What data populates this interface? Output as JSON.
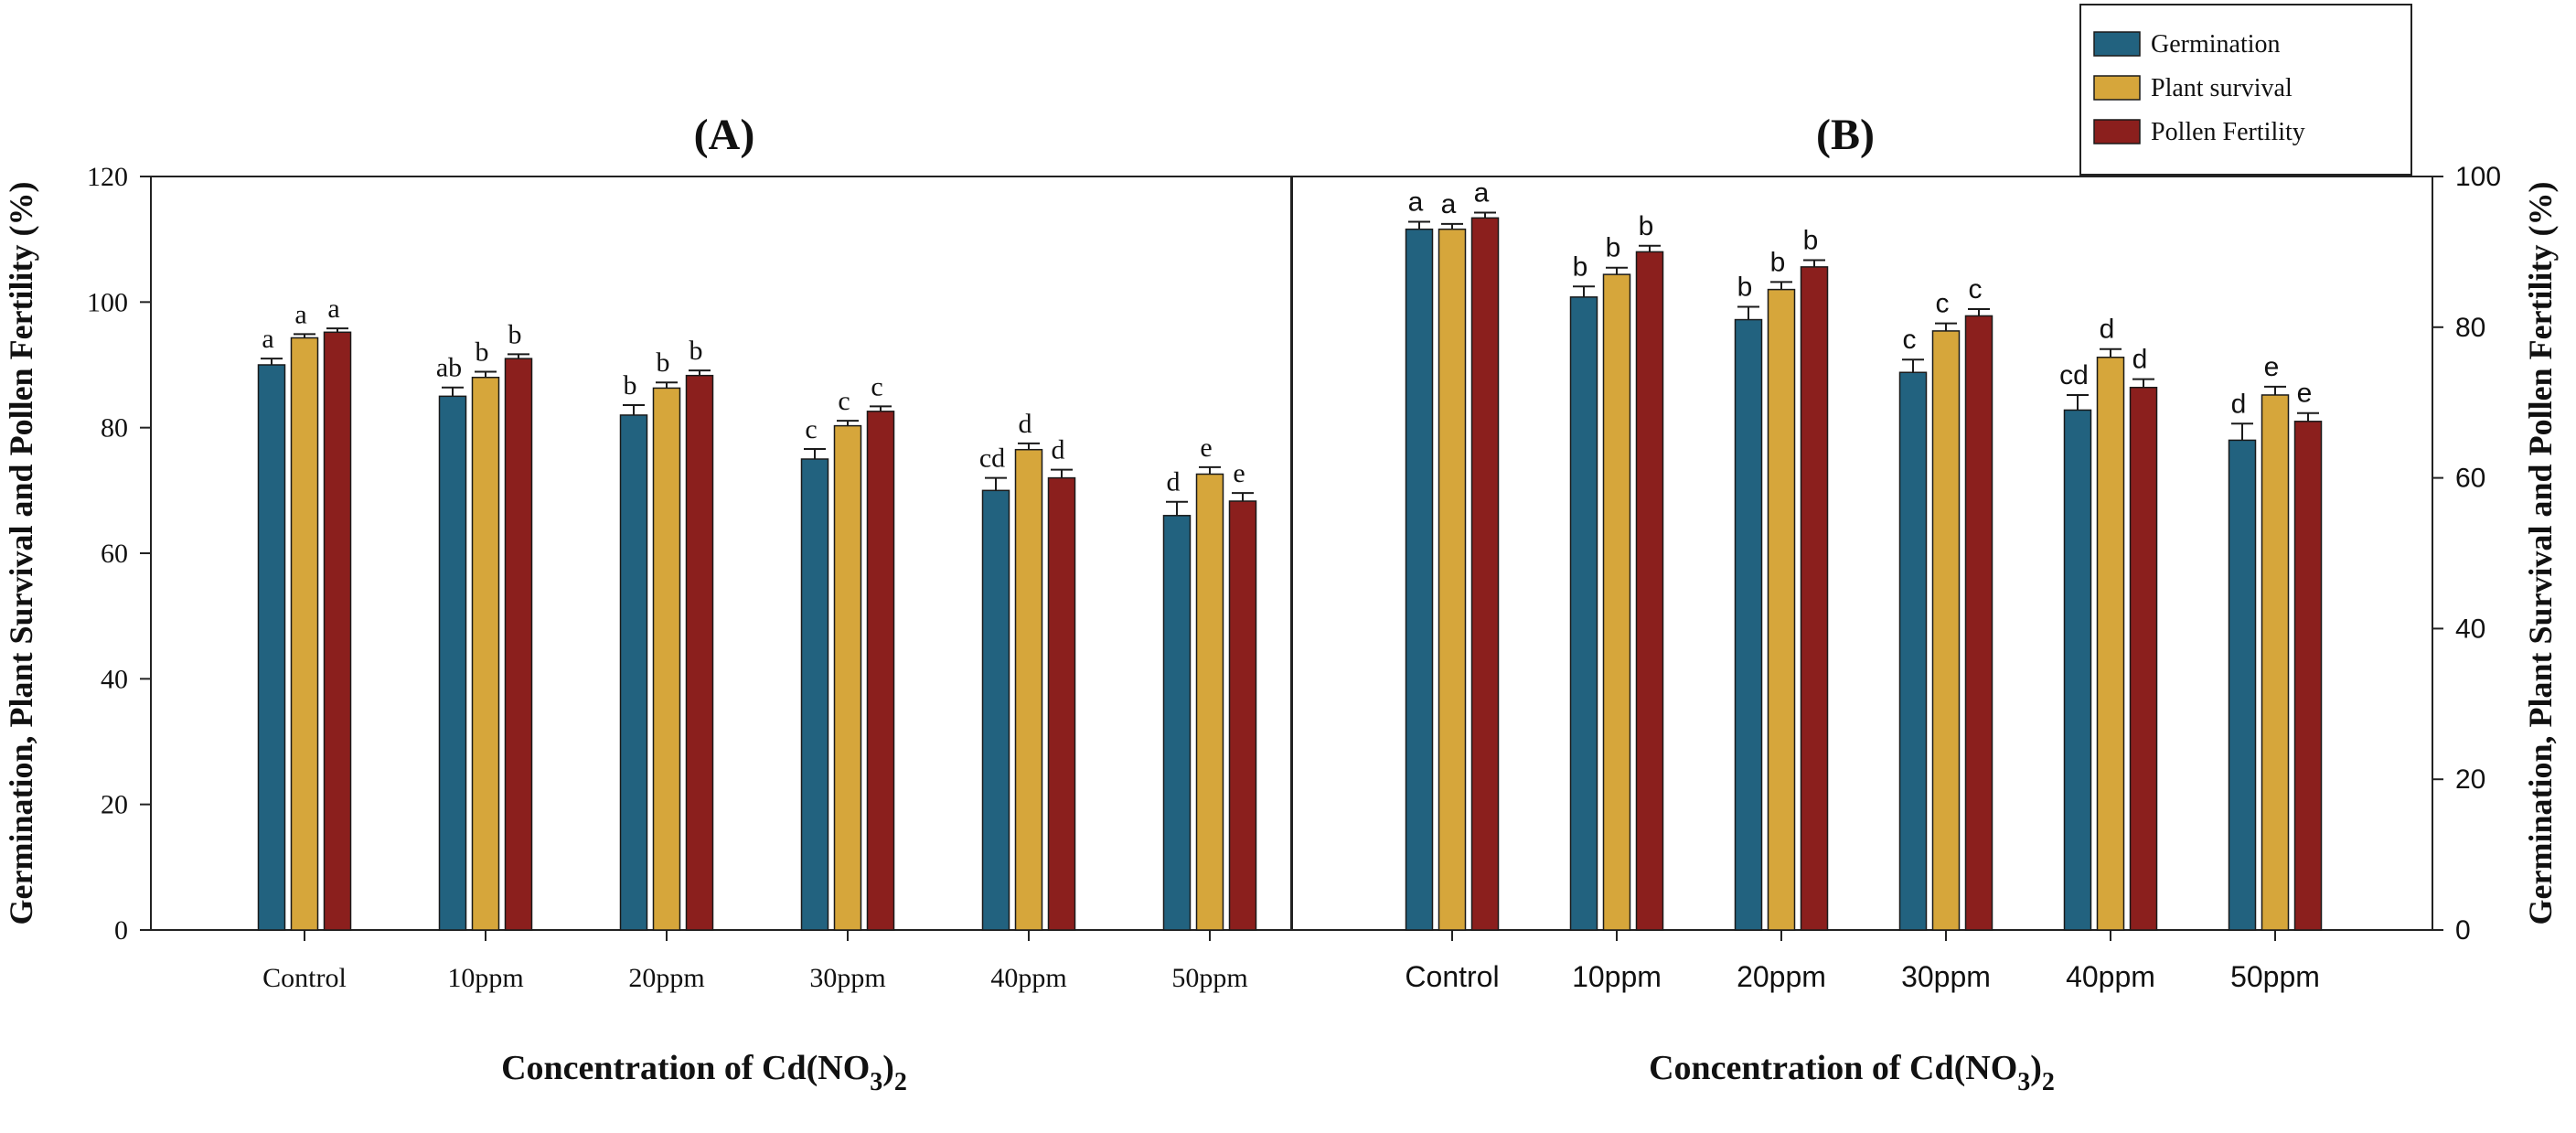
{
  "figure": {
    "legend": [
      {
        "name": "Germination",
        "color": "#22627f"
      },
      {
        "name": "Plant survival",
        "color": "#d6a63b"
      },
      {
        "name": "Pollen Fertility",
        "color": "#8b1f1d"
      }
    ],
    "xlabel_main": "Concentration of Cd(NO",
    "xlabel_sub": "3",
    "xlabel_tail": ")",
    "xlabel_sub2": "2"
  },
  "chart_data": [
    {
      "type": "bar",
      "panel_label": "(A)",
      "categories": [
        "Control",
        "10ppm",
        "20ppm",
        "30ppm",
        "40ppm",
        "50ppm"
      ],
      "series": [
        {
          "name": "Germination",
          "values": [
            90,
            85,
            82,
            75,
            70,
            66
          ],
          "errors": [
            1.0,
            1.4,
            1.6,
            1.6,
            2.0,
            2.2
          ],
          "labels": [
            "a",
            "ab",
            "b",
            "c",
            "cd",
            "d"
          ]
        },
        {
          "name": "Plant survival",
          "values": [
            94.3,
            88,
            86.3,
            80.3,
            76.5,
            72.6
          ],
          "errors": [
            0.6,
            0.9,
            0.9,
            0.8,
            1.0,
            1.1
          ],
          "labels": [
            "a",
            "b",
            "b",
            "c",
            "d",
            "e"
          ]
        },
        {
          "name": "Pollen Fertility",
          "values": [
            95.2,
            91,
            88.3,
            82.6,
            72,
            68.3
          ],
          "errors": [
            0.6,
            0.7,
            0.8,
            0.8,
            1.3,
            1.3
          ],
          "labels": [
            "a",
            "b",
            "b",
            "c",
            "d",
            "e"
          ]
        }
      ],
      "xlabel": "Concentration of Cd(NO3)2",
      "ylabel": "Germination, Plant Survival and Pollen Fertility (%)",
      "ylim": [
        0,
        120
      ],
      "yticks": [
        0,
        20,
        40,
        60,
        80,
        100,
        120
      ]
    },
    {
      "type": "bar",
      "panel_label": "(B)",
      "categories": [
        "Control",
        "10ppm",
        "20ppm",
        "30ppm",
        "40ppm",
        "50ppm"
      ],
      "series": [
        {
          "name": "Germination",
          "values": [
            93,
            84,
            81,
            74,
            69,
            65
          ],
          "errors": [
            1.0,
            1.4,
            1.7,
            1.7,
            2.0,
            2.2
          ],
          "labels": [
            "a",
            "b",
            "b",
            "c",
            "cd",
            "d"
          ]
        },
        {
          "name": "Plant survival",
          "values": [
            93,
            87,
            85,
            79.5,
            76,
            71
          ],
          "errors": [
            0.7,
            0.9,
            1.0,
            1.0,
            1.1,
            1.1
          ],
          "labels": [
            "a",
            "b",
            "b",
            "c",
            "d",
            "e"
          ]
        },
        {
          "name": "Pollen Fertility",
          "values": [
            94.5,
            90,
            88,
            81.5,
            72,
            67.5
          ],
          "errors": [
            0.7,
            0.8,
            0.9,
            0.9,
            1.1,
            1.1
          ],
          "labels": [
            "a",
            "b",
            "b",
            "c",
            "d",
            "e"
          ]
        }
      ],
      "xlabel": "Concentration of Cd(NO3)2",
      "ylabel": "Germination, Plant Survival and Pollen Fertility (%)",
      "ylim": [
        0,
        100
      ],
      "yticks": [
        0,
        20,
        40,
        60,
        80,
        100
      ]
    }
  ]
}
